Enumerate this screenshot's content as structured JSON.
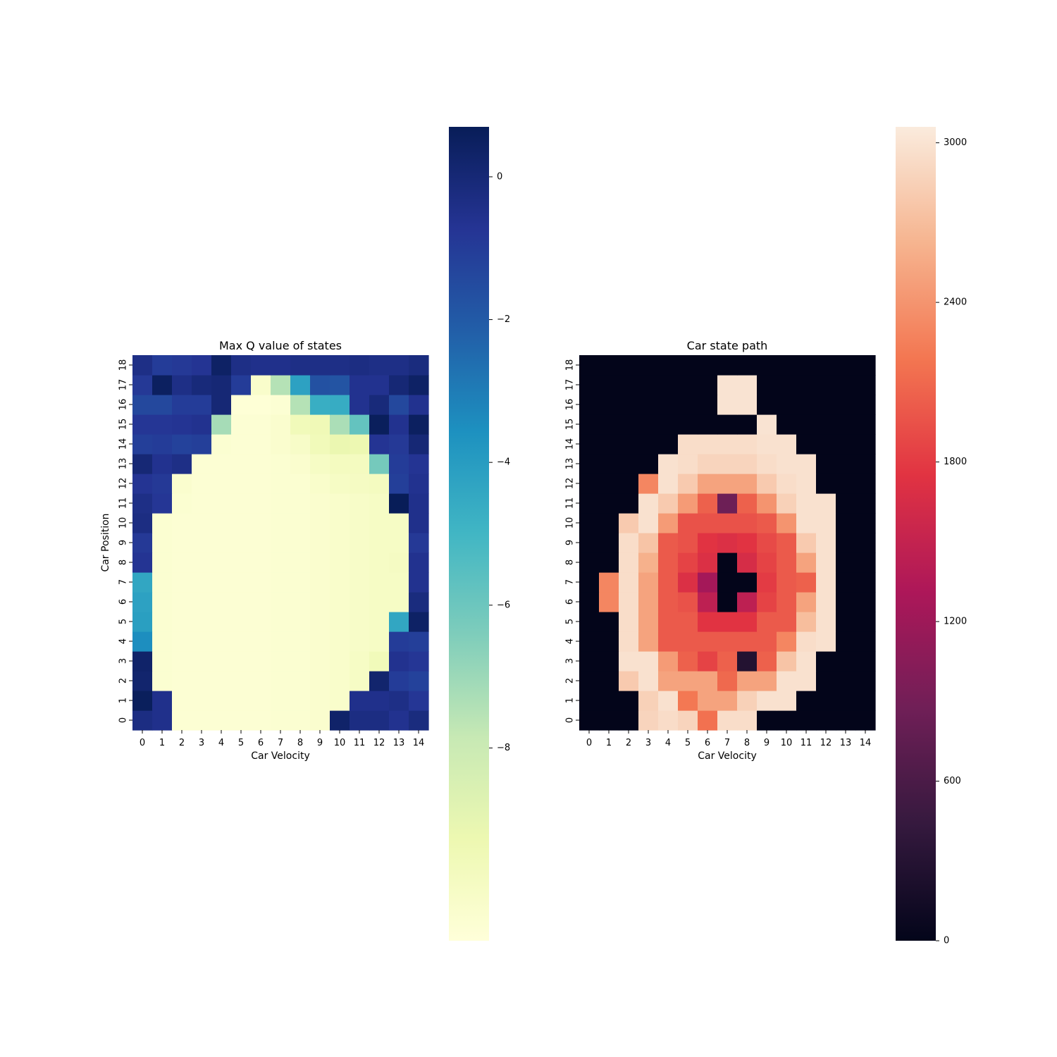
{
  "chart_data": [
    {
      "type": "heatmap",
      "title": "Max Q value of states",
      "xlabel": "Car Velocity",
      "ylabel": "Car Position",
      "x_ticks": [
        "0",
        "1",
        "2",
        "3",
        "4",
        "5",
        "6",
        "7",
        "8",
        "9",
        "10",
        "11",
        "12",
        "13",
        "14"
      ],
      "y_ticks": [
        "0",
        "1",
        "2",
        "3",
        "4",
        "5",
        "6",
        "7",
        "8",
        "9",
        "10",
        "11",
        "12",
        "13",
        "14",
        "15",
        "16",
        "17",
        "18"
      ],
      "colormap": "YlGnBu",
      "value_range": [
        -10.7,
        0.7
      ],
      "colorbar_ticks": [
        0,
        -2,
        -4,
        -6,
        -8
      ],
      "colorbar_tick_labels": [
        "0",
        "−2",
        "−4",
        "−6",
        "−8"
      ],
      "values": [
        [
          -0.3,
          -0.5,
          -10.5,
          -10.5,
          -10.5,
          -10.5,
          -10.5,
          -10.4,
          -10.4,
          -10.3,
          0.3,
          -0.3,
          -0.3,
          -0.6,
          -0.2
        ],
        [
          0.6,
          -0.5,
          -10.5,
          -10.5,
          -10.5,
          -10.5,
          -10.5,
          -10.4,
          -10.4,
          -10.3,
          -10.2,
          -0.5,
          -0.5,
          -0.4,
          -0.8
        ],
        [
          0.2,
          -10.4,
          -10.5,
          -10.5,
          -10.5,
          -10.5,
          -10.5,
          -10.4,
          -10.4,
          -10.3,
          -10.2,
          -10.0,
          0.2,
          -1.0,
          -1.2
        ],
        [
          0.3,
          -10.4,
          -10.5,
          -10.5,
          -10.5,
          -10.5,
          -10.5,
          -10.4,
          -10.4,
          -10.3,
          -10.2,
          -10.0,
          -9.6,
          -0.6,
          -0.8
        ],
        [
          -3.5,
          -10.4,
          -10.5,
          -10.5,
          -10.5,
          -10.5,
          -10.5,
          -10.4,
          -10.4,
          -10.3,
          -10.2,
          -10.1,
          -10.0,
          -1.0,
          -1.1
        ],
        [
          -4.1,
          -10.4,
          -10.5,
          -10.5,
          -10.5,
          -10.5,
          -10.5,
          -10.4,
          -10.4,
          -10.3,
          -10.2,
          -10.1,
          -10.0,
          -4.4,
          0.4
        ],
        [
          -4.2,
          -10.4,
          -10.5,
          -10.5,
          -10.5,
          -10.5,
          -10.5,
          -10.4,
          -10.4,
          -10.3,
          -10.2,
          -10.1,
          -10.0,
          -10.0,
          -0.2
        ],
        [
          -4.4,
          -10.4,
          -10.5,
          -10.5,
          -10.5,
          -10.5,
          -10.5,
          -10.4,
          -10.4,
          -10.3,
          -10.2,
          -10.1,
          -10.0,
          -10.0,
          -0.6
        ],
        [
          -0.7,
          -10.4,
          -10.5,
          -10.5,
          -10.5,
          -10.5,
          -10.5,
          -10.4,
          -10.4,
          -10.3,
          -10.2,
          -10.1,
          -10.0,
          -9.9,
          -0.6
        ],
        [
          -0.9,
          -10.4,
          -10.5,
          -10.5,
          -10.5,
          -10.5,
          -10.5,
          -10.4,
          -10.4,
          -10.3,
          -10.2,
          -10.1,
          -10.0,
          -10.0,
          -0.9
        ],
        [
          -0.3,
          -10.4,
          -10.5,
          -10.5,
          -10.5,
          -10.5,
          -10.5,
          -10.4,
          -10.4,
          -10.3,
          -10.2,
          -10.1,
          -10.0,
          -10.0,
          -0.5
        ],
        [
          -0.4,
          -0.8,
          -10.4,
          -10.5,
          -10.5,
          -10.5,
          -10.5,
          -10.4,
          -10.4,
          -10.3,
          -10.2,
          -10.1,
          -10.0,
          0.7,
          -0.5
        ],
        [
          -0.7,
          -0.9,
          -10.3,
          -10.5,
          -10.5,
          -10.5,
          -10.5,
          -10.4,
          -10.4,
          -10.2,
          -10.0,
          -9.9,
          -9.8,
          -1.1,
          -0.6
        ],
        [
          0.0,
          -0.6,
          -0.4,
          -10.5,
          -10.5,
          -10.5,
          -10.5,
          -10.4,
          -10.3,
          -10.0,
          -9.8,
          -9.8,
          -6.2,
          -1.0,
          -0.7
        ],
        [
          -1.1,
          -1.0,
          -1.2,
          -1.1,
          -10.4,
          -10.5,
          -10.5,
          -10.3,
          -10.1,
          -9.6,
          -9.2,
          -9.3,
          -0.7,
          -0.9,
          0.0
        ],
        [
          -0.8,
          -0.8,
          -0.7,
          -0.6,
          -7.2,
          -10.5,
          -10.5,
          -10.3,
          -9.6,
          -9.5,
          -7.3,
          -5.8,
          0.6,
          -0.6,
          0.5
        ],
        [
          -1.4,
          -1.4,
          -1.0,
          -1.0,
          0.0,
          -10.6,
          -10.6,
          -10.5,
          -7.5,
          -4.7,
          -4.6,
          -0.6,
          -0.1,
          -1.4,
          -0.6
        ],
        [
          -0.9,
          0.5,
          -0.4,
          -0.1,
          0.0,
          -1.0,
          -10.2,
          -7.5,
          -4.2,
          -1.7,
          -1.8,
          -0.6,
          -0.6,
          0.0,
          0.4
        ],
        [
          -0.4,
          -1.0,
          -0.9,
          -0.7,
          0.4,
          -0.4,
          -0.5,
          -0.5,
          -0.4,
          -0.4,
          -0.4,
          -0.3,
          -0.4,
          -0.4,
          -0.2
        ]
      ]
    },
    {
      "type": "heatmap",
      "title": "Car state path",
      "xlabel": "Car Velocity",
      "ylabel": "",
      "x_ticks": [
        "0",
        "1",
        "2",
        "3",
        "4",
        "5",
        "6",
        "7",
        "8",
        "9",
        "10",
        "11",
        "12",
        "13",
        "14"
      ],
      "y_ticks": [
        "0",
        "1",
        "2",
        "3",
        "4",
        "5",
        "6",
        "7",
        "8",
        "9",
        "10",
        "11",
        "12",
        "13",
        "14",
        "15",
        "16",
        "17",
        "18"
      ],
      "colormap": "rocket",
      "value_range": [
        0,
        3060
      ],
      "colorbar_ticks": [
        0,
        600,
        1200,
        1800,
        2400,
        3000
      ],
      "colorbar_tick_labels": [
        "0",
        "600",
        "1200",
        "1800",
        "2400",
        "3000"
      ],
      "values": [
        [
          0,
          0,
          0,
          2880,
          2940,
          2880,
          2150,
          2950,
          2950,
          0,
          0,
          0,
          0,
          0,
          0
        ],
        [
          0,
          0,
          0,
          2850,
          2980,
          2200,
          2500,
          2500,
          2850,
          2980,
          2980,
          0,
          0,
          0,
          0
        ],
        [
          0,
          0,
          2800,
          2980,
          2500,
          2500,
          2500,
          2100,
          2500,
          2500,
          2980,
          2980,
          0,
          0,
          0
        ],
        [
          0,
          0,
          2980,
          2980,
          2450,
          2050,
          1850,
          2050,
          280,
          2050,
          2750,
          2980,
          0,
          0,
          0
        ],
        [
          0,
          0,
          2950,
          2500,
          2000,
          2000,
          2000,
          2000,
          2000,
          2000,
          2300,
          2950,
          2980,
          0,
          0
        ],
        [
          0,
          0,
          2950,
          2500,
          2000,
          2000,
          1750,
          1750,
          1750,
          2000,
          2000,
          2700,
          2980,
          0,
          0
        ],
        [
          0,
          2300,
          2950,
          2500,
          2000,
          1950,
          1450,
          0,
          1450,
          1850,
          2000,
          2500,
          2980,
          0,
          0
        ],
        [
          0,
          2300,
          2950,
          2500,
          2000,
          1700,
          1250,
          0,
          0,
          1800,
          2000,
          2050,
          2980,
          0,
          0
        ],
        [
          0,
          0,
          2950,
          2600,
          2000,
          1850,
          1700,
          0,
          1650,
          1850,
          2000,
          2500,
          2980,
          0,
          0
        ],
        [
          0,
          0,
          2950,
          2750,
          2000,
          1950,
          1750,
          1700,
          1750,
          1900,
          2000,
          2800,
          2980,
          0,
          0
        ],
        [
          0,
          0,
          2800,
          2980,
          2450,
          1950,
          1950,
          1950,
          1950,
          2000,
          2400,
          2980,
          2980,
          0,
          0
        ],
        [
          0,
          0,
          0,
          2980,
          2800,
          2450,
          2050,
          850,
          2050,
          2400,
          2850,
          2980,
          2980,
          0,
          0
        ],
        [
          0,
          0,
          0,
          2300,
          2980,
          2800,
          2500,
          2500,
          2500,
          2800,
          2950,
          2980,
          0,
          0,
          0
        ],
        [
          0,
          0,
          0,
          0,
          2980,
          2950,
          2880,
          2880,
          2880,
          2950,
          2980,
          2980,
          0,
          0,
          0
        ],
        [
          0,
          0,
          0,
          0,
          0,
          2950,
          2950,
          2950,
          2950,
          2980,
          2980,
          0,
          0,
          0,
          0
        ],
        [
          0,
          0,
          0,
          0,
          0,
          0,
          0,
          0,
          0,
          3000,
          0,
          0,
          0,
          0,
          0
        ],
        [
          0,
          0,
          0,
          0,
          0,
          0,
          0,
          3000,
          3000,
          0,
          0,
          0,
          0,
          0,
          0
        ],
        [
          0,
          0,
          0,
          0,
          0,
          0,
          0,
          3000,
          3000,
          0,
          0,
          0,
          0,
          0,
          0
        ],
        [
          0,
          0,
          0,
          0,
          0,
          0,
          0,
          0,
          0,
          0,
          0,
          0,
          0,
          0,
          0
        ]
      ]
    }
  ]
}
